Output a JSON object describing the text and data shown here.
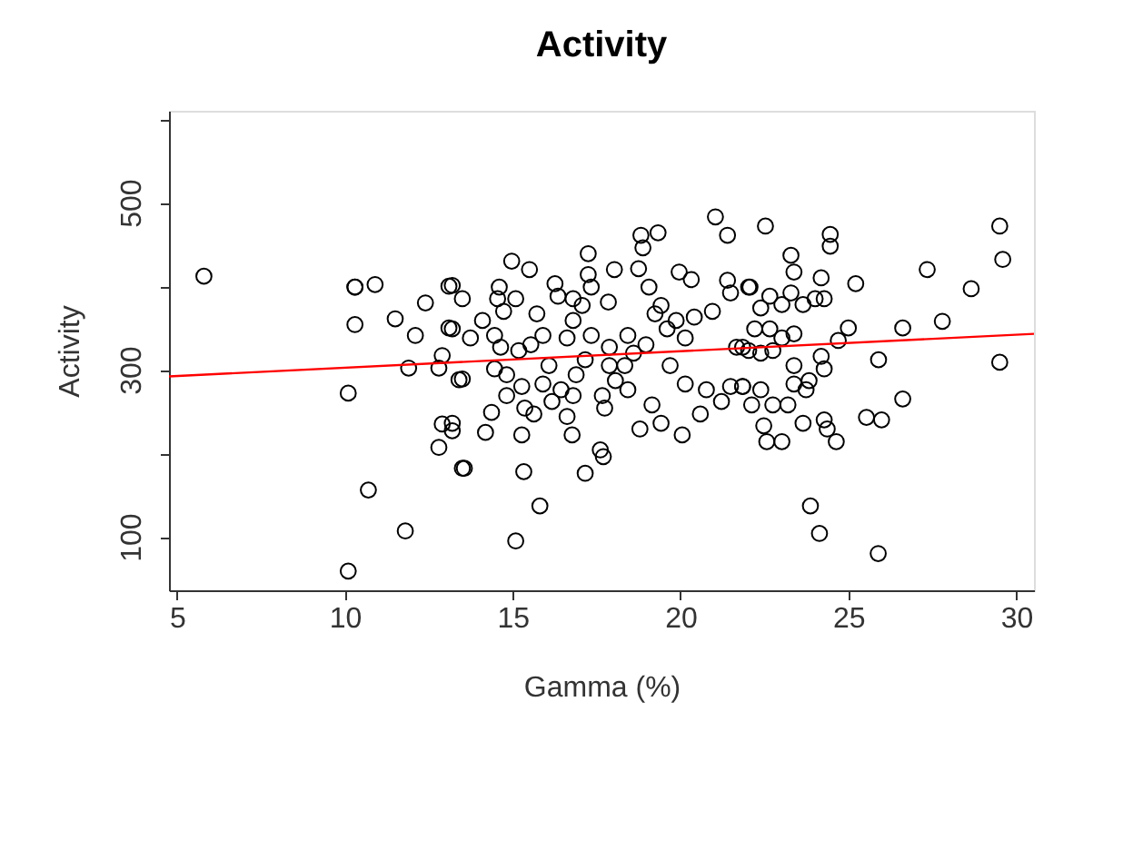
{
  "chart_data": {
    "type": "scatter",
    "title": "Activity",
    "xlabel": "Gamma (%)",
    "ylabel": "Activity",
    "xlim": [
      4.76,
      30.53
    ],
    "ylim": [
      36,
      610
    ],
    "xticks": [
      5,
      10,
      15,
      20,
      25,
      30
    ],
    "yticks": [
      100,
      {
        "value": 200,
        "label": null
      },
      300,
      {
        "value": 400,
        "label": null
      },
      500,
      {
        "value": 600,
        "label": null
      }
    ],
    "grid": false,
    "series": [
      {
        "color": "#000000",
        "marker": "circle",
        "x": [
          5.8,
          10.3,
          10.3,
          10.9,
          10.3,
          10.1,
          10.7,
          10.1,
          11.8,
          12.4,
          11.5,
          12.1,
          13.1,
          13.1,
          12.9,
          11.9,
          12.8,
          13.4,
          12.9,
          13.2,
          12.8,
          13.5,
          13.5,
          13.2,
          13.2,
          13.74,
          13.5,
          13.2,
          13.56,
          14.19,
          14.37,
          14.6,
          14.55,
          15.09,
          14.97,
          15.5,
          14.73,
          14.1,
          14.46,
          14.64,
          14.46,
          14.82,
          14.82,
          15.18,
          15.27,
          15.36,
          15.27,
          15.33,
          15.81,
          15.09,
          15.54,
          15.72,
          15.9,
          16.26,
          16.35,
          16.08,
          15.9,
          15.63,
          16.17,
          16.44,
          16.62,
          16.8,
          17.25,
          17.25,
          17.34,
          17.07,
          16.8,
          17.34,
          17.16,
          16.89,
          16.8,
          16.62,
          16.77,
          17.16,
          17.7,
          17.61,
          17.85,
          18.03,
          17.88,
          17.88,
          17.67,
          17.74,
          18.06,
          18.43,
          18.34,
          18.43,
          18.6,
          18.75,
          18.88,
          19.33,
          18.82,
          19.06,
          19.24,
          19.42,
          18.97,
          19.15,
          18.79,
          19.42,
          19.69,
          19.6,
          19.96,
          20.32,
          19.87,
          20.14,
          20.41,
          20.14,
          20.05,
          20.59,
          20.95,
          21.04,
          21.4,
          21.4,
          21.49,
          20.77,
          21.22,
          21.49,
          21.85,
          21.67,
          22.03,
          22.03,
          22.53,
          22.07,
          22.66,
          22.39,
          23.29,
          23.38,
          23.29,
          23.02,
          23.65,
          24.19,
          24.01,
          24.28,
          24.46,
          24.46,
          25.22,
          22.21,
          22.66,
          23.38,
          23.02,
          21.85,
          22.39,
          22.75,
          25.0,
          24.7,
          24.19,
          24.28,
          23.38,
          23.38,
          23.83,
          23.74,
          25.9,
          21.85,
          22.39,
          22.75,
          23.2,
          22.12,
          22.48,
          22.57,
          23.02,
          23.65,
          24.28,
          24.37,
          24.64,
          25.54,
          25.99,
          26.62,
          26.62,
          27.8,
          27.35,
          28.66,
          29.51,
          29.6,
          29.51,
          23.87,
          24.14,
          25.89
        ],
        "values": [
          412,
          399,
          399,
          402,
          354,
          272,
          156,
          59,
          107,
          380,
          361,
          341,
          400,
          350,
          317,
          302,
          302,
          288,
          235,
          227,
          207,
          182,
          385,
          401,
          349,
          338,
          289,
          236,
          182,
          225,
          249,
          399,
          385,
          385,
          430,
          420,
          370,
          359,
          341,
          327,
          301,
          294,
          269,
          323,
          280,
          254,
          222,
          178,
          137,
          95,
          330,
          367,
          341,
          403,
          388,
          305,
          283,
          247,
          262,
          276,
          338,
          385,
          439,
          414,
          399,
          377,
          359,
          341,
          312,
          294,
          269,
          244,
          222,
          176,
          196,
          204,
          381,
          420,
          327,
          305,
          269,
          254,
          287,
          341,
          305,
          276,
          320,
          421,
          446,
          464,
          461,
          399,
          367,
          377,
          330,
          258,
          229,
          236,
          305,
          349,
          417,
          408,
          359,
          338,
          363,
          283,
          222,
          247,
          370,
          483,
          461,
          407,
          392,
          276,
          262,
          280,
          280,
          327,
          323,
          399,
          472,
          399,
          388,
          374,
          437,
          417,
          392,
          378,
          378,
          410,
          385,
          385,
          462,
          448,
          403,
          349,
          349,
          343,
          338,
          327,
          320,
          323,
          350,
          335,
          316,
          301,
          305,
          283,
          287,
          276,
          312,
          280,
          276,
          258,
          258,
          258,
          233,
          214,
          214,
          236,
          240,
          229,
          214,
          243,
          240,
          265,
          350,
          358,
          420,
          397,
          472,
          432,
          309,
          137,
          104,
          80
        ]
      },
      {
        "type": "line",
        "marker": "none",
        "color": "#ff0000",
        "x": [
          4.76,
          30.53
        ],
        "values": [
          292,
          343
        ]
      }
    ]
  }
}
